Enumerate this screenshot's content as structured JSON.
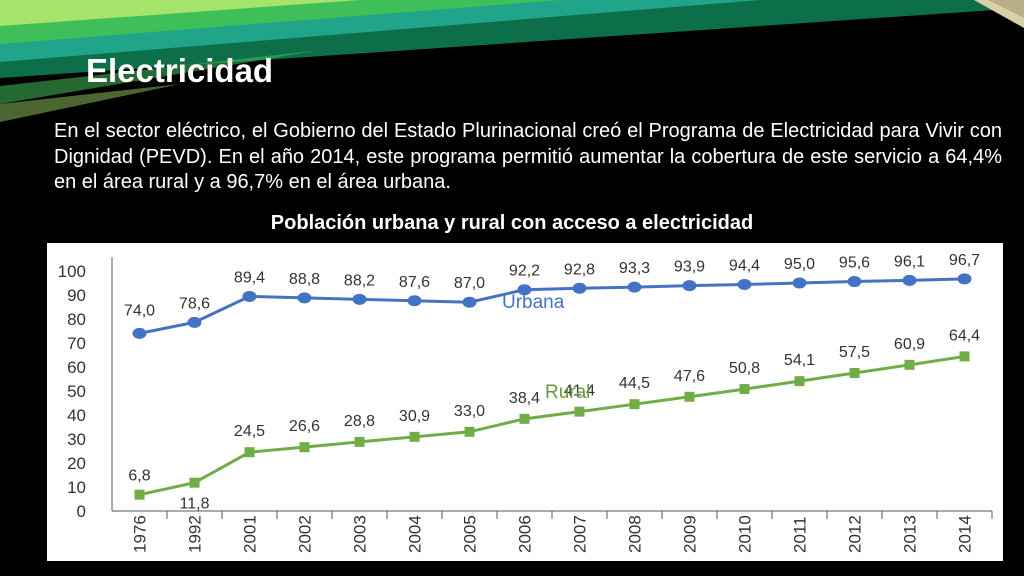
{
  "slide": {
    "title": "Electricidad",
    "body": "En el sector eléctrico, el Gobierno del Estado Plurinacional creó el Programa de Electricidad para Vivir con Dignidad (PEVD). En el año 2014, este programa permitió aumentar la cobertura de este servicio a 64,4% en el área rural y a 96,7% en el área urbana.",
    "accent_colors": {
      "stripe_light": "#a6e36a",
      "stripe_mid": "#3fbf5a",
      "stripe_teal": "#20a48a",
      "stripe_dark": "#0d6e4a"
    }
  },
  "chart_data": {
    "type": "line",
    "title": "Población urbana y rural con acceso a electricidad",
    "xlabel": "",
    "ylabel": "",
    "ylim": [
      0,
      100
    ],
    "yticks": [
      "0",
      "10",
      "20",
      "30",
      "40",
      "50",
      "60",
      "70",
      "80",
      "90",
      "100"
    ],
    "categories": [
      "1976",
      "1992",
      "2001",
      "2002",
      "2003",
      "2004",
      "2005",
      "2006",
      "2007",
      "2008",
      "2009",
      "2010",
      "2011",
      "2012",
      "2013",
      "2014"
    ],
    "grid": false,
    "series": [
      {
        "name": "Urbana",
        "color": "#4472c4",
        "marker": "circle",
        "values": [
          74.0,
          78.6,
          89.4,
          88.8,
          88.2,
          87.6,
          87.0,
          92.2,
          92.8,
          93.3,
          93.9,
          94.4,
          95.0,
          95.6,
          96.1,
          96.7
        ],
        "labels": [
          "74,0",
          "78,6",
          "89,4",
          "88,8",
          "88,2",
          "87,6",
          "87,0",
          "92,2",
          "92,8",
          "93,3",
          "93,9",
          "94,4",
          "95,0",
          "95,6",
          "96,1",
          "96,7"
        ]
      },
      {
        "name": "Rural",
        "color": "#70ad47",
        "marker": "square",
        "values": [
          6.8,
          11.8,
          24.5,
          26.6,
          28.8,
          30.9,
          33.0,
          38.4,
          41.4,
          44.5,
          47.6,
          50.8,
          54.1,
          57.5,
          60.9,
          64.4
        ],
        "labels": [
          "6,8",
          "11,8",
          "24,5",
          "26,6",
          "28,8",
          "30,9",
          "33,0",
          "38,4",
          "41,4",
          "44,5",
          "47,6",
          "50,8",
          "54,1",
          "57,5",
          "60,9",
          "64,4"
        ]
      }
    ]
  }
}
